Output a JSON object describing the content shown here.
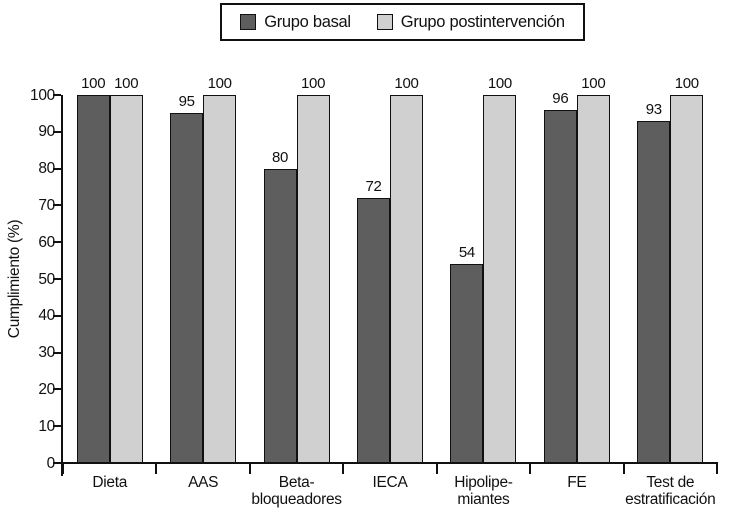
{
  "chart_data": {
    "type": "bar",
    "title": "",
    "xlabel": "",
    "ylabel": "Cumplimiento (%)",
    "ylim": [
      0,
      100
    ],
    "yticks": [
      0,
      10,
      20,
      30,
      40,
      50,
      60,
      70,
      80,
      90,
      100
    ],
    "grid": false,
    "legend_position": "top-center",
    "bar_value_labels": true,
    "categories": [
      "Dieta",
      "AAS",
      "Beta-\nbloqueadores",
      "IECA",
      "Hipolipe-\nmiantes",
      "FE",
      "Test de\nestratificación"
    ],
    "series": [
      {
        "name": "Grupo basal",
        "color": "#5e5e5e",
        "values": [
          100,
          95,
          80,
          72,
          54,
          96,
          93
        ]
      },
      {
        "name": "Grupo postintervención",
        "color": "#d0d0d0",
        "values": [
          100,
          100,
          100,
          100,
          100,
          100,
          100
        ]
      }
    ],
    "colors": {
      "bar_border": "#111111",
      "axis": "#111111",
      "background": "#ffffff"
    }
  }
}
